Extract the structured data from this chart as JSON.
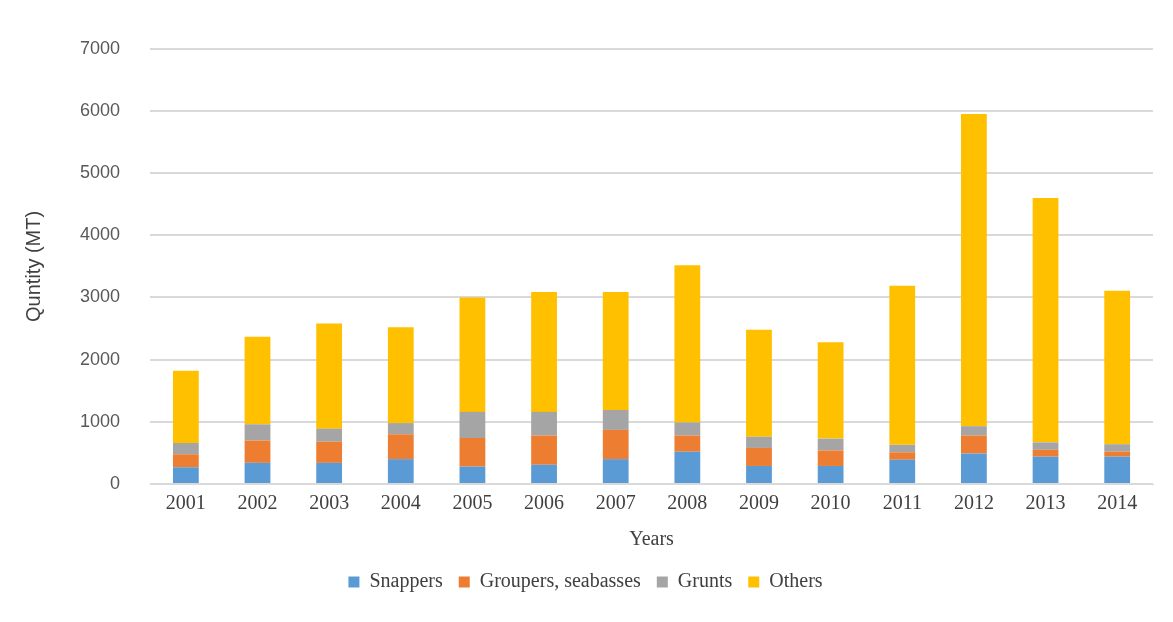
{
  "chart_data": {
    "type": "bar",
    "stacked": true,
    "xlabel": "Years",
    "ylabel": "Quntity (MT)",
    "categories": [
      "2001",
      "2002",
      "2003",
      "2004",
      "2005",
      "2006",
      "2007",
      "2008",
      "2009",
      "2010",
      "2011",
      "2012",
      "2013",
      "2014"
    ],
    "series": [
      {
        "name": "Snappers",
        "color": "#5b9bd5",
        "values": [
          270,
          340,
          340,
          400,
          280,
          310,
          400,
          520,
          290,
          290,
          390,
          490,
          440,
          440
        ]
      },
      {
        "name": "Groupers, seabasses",
        "color": "#ed7d31",
        "values": [
          210,
          360,
          340,
          400,
          460,
          470,
          470,
          260,
          290,
          250,
          120,
          290,
          110,
          80
        ]
      },
      {
        "name": "Grunts",
        "color": "#a5a5a5",
        "values": [
          180,
          260,
          210,
          180,
          420,
          380,
          320,
          210,
          180,
          190,
          120,
          150,
          120,
          120
        ]
      },
      {
        "name": "Others",
        "color": "#ffc000",
        "values": [
          1160,
          1410,
          1690,
          1540,
          1840,
          1930,
          1900,
          2530,
          1720,
          1550,
          2560,
          5020,
          3930,
          2470
        ]
      }
    ],
    "ylim": [
      0,
      7000
    ],
    "yticks": [
      0,
      1000,
      2000,
      3000,
      4000,
      5000,
      6000,
      7000
    ],
    "grid": "y",
    "legend": "bottom"
  }
}
